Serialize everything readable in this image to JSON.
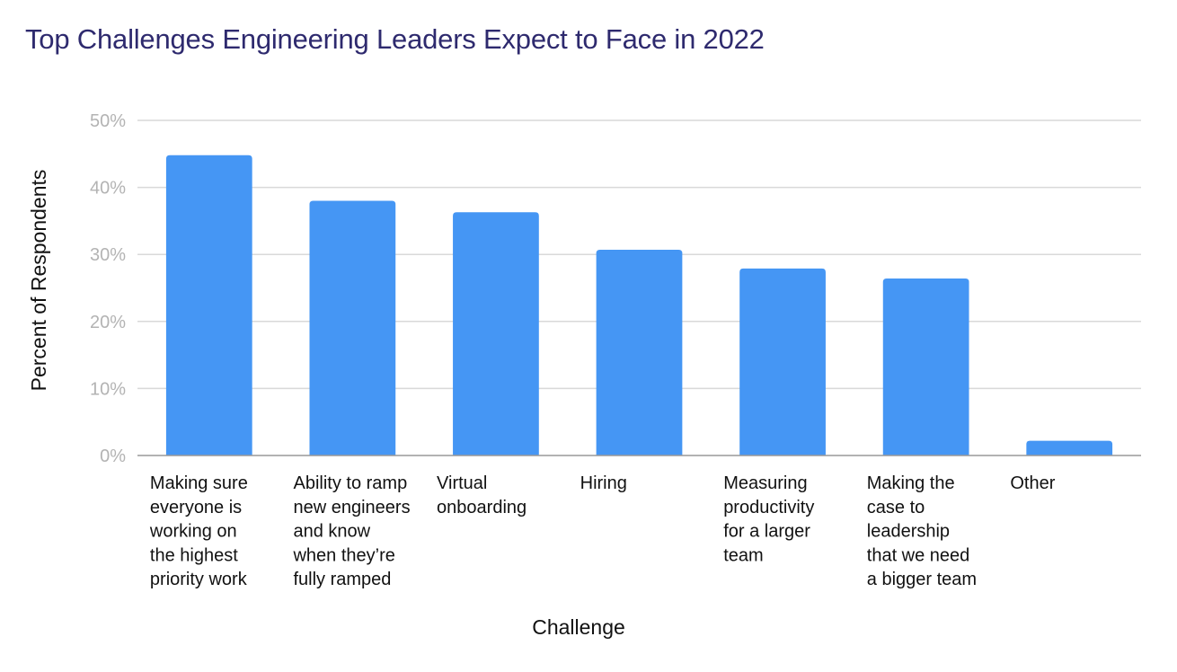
{
  "chart_data": {
    "type": "bar",
    "title": "Top Challenges Engineering Leaders Expect to Face in 2022",
    "xlabel": "Challenge",
    "ylabel": "Percent of Respondents",
    "ylim": [
      0,
      50
    ],
    "yticks": [
      "0%",
      "10%",
      "20%",
      "30%",
      "40%",
      "50%"
    ],
    "grid": true,
    "legend": "none",
    "bar_color": "#4596f4",
    "categories": [
      [
        "Making sure",
        "everyone is",
        "working on",
        "the highest",
        "priority work"
      ],
      [
        "Ability to ramp",
        "new engineers",
        "and know",
        "when they’re",
        "fully ramped"
      ],
      [
        "Virtual",
        "onboarding"
      ],
      [
        "Hiring"
      ],
      [
        "Measuring",
        "productivity",
        "for a larger",
        "team"
      ],
      [
        "Making the",
        "case to",
        "leadership",
        "that we need",
        "a bigger team"
      ],
      [
        "Other"
      ]
    ],
    "values": [
      44.8,
      38.0,
      36.3,
      30.7,
      27.9,
      26.4,
      2.2
    ]
  },
  "colors": {
    "title": "#2e2a6e",
    "grid": "#d9d9d9",
    "axis": "#999999",
    "tick_text": "#b3b3b3",
    "text": "#111111"
  }
}
